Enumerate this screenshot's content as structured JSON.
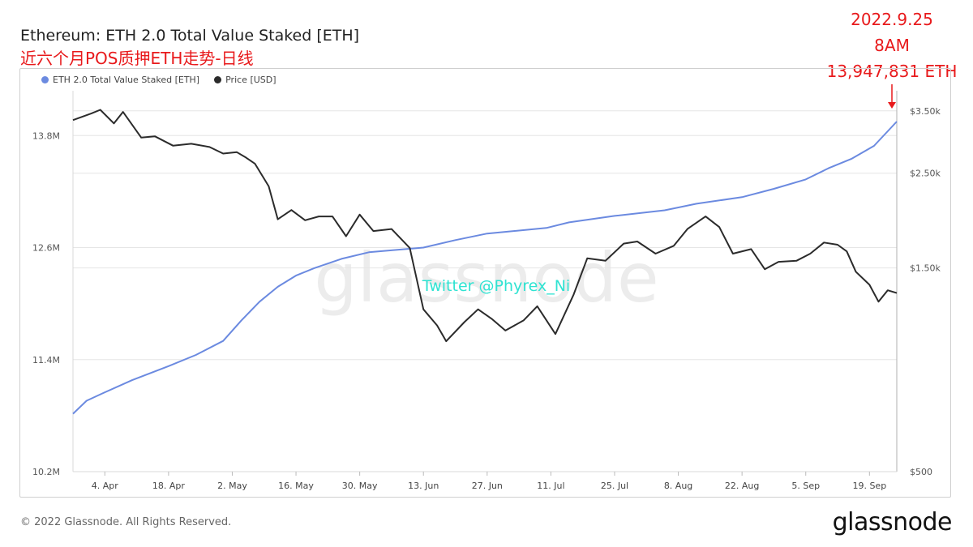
{
  "header": {
    "title": "Ethereum: ETH 2.0 Total Value Staked [ETH]",
    "subtitle": "近六个月POS质押ETH走势-日线"
  },
  "annotation": {
    "date": "2022.9.25",
    "time": "8AM",
    "value": "13,947,831 ETH",
    "arrow": "↓"
  },
  "watermark": "Twitter @Phyrex_Ni",
  "footer": {
    "copyright": "© 2022 Glassnode. All Rights Reserved."
  },
  "brand": {
    "logo": "glassnode",
    "watermark_logo": "glassnode"
  },
  "colors": {
    "staked": "#6b8ae0",
    "price": "#2b2b2b",
    "annotation": "#e8191b",
    "watermark_text": "#2fe3d2",
    "grid": "#e6e6e6"
  },
  "chart_data": {
    "type": "line",
    "x_ticks": [
      "4. Apr",
      "18. Apr",
      "2. May",
      "16. May",
      "30. May",
      "13. Jun",
      "27. Jun",
      "11. Jul",
      "25. Jul",
      "8. Aug",
      "22. Aug",
      "5. Sep",
      "19. Sep"
    ],
    "x_start": "2022-03-28",
    "x_end": "2022-09-25",
    "y_left": {
      "ticks": [
        "10.2M",
        "11.4M",
        "12.6M",
        "13.8M"
      ],
      "tick_values": [
        10.2,
        11.4,
        12.6,
        13.8
      ],
      "range": [
        10.2,
        14.28
      ],
      "unit": "M ETH"
    },
    "y_right": {
      "ticks": [
        "$500",
        "$1.50k",
        "$2.50k",
        "$3.50k"
      ],
      "tick_values": [
        500,
        1500,
        2500,
        3500
      ],
      "range": [
        500,
        3900
      ],
      "scale": "log"
    },
    "legend": [
      {
        "name": "ETH 2.0 Total Value Staked [ETH]",
        "color": "#6b8ae0"
      },
      {
        "name": "Price [USD]",
        "color": "#2b2b2b"
      }
    ],
    "series": [
      {
        "name": "ETH 2.0 Total Value Staked [ETH]",
        "axis": "left",
        "points": [
          [
            "2022-03-28",
            10.82
          ],
          [
            "2022-03-31",
            10.96
          ],
          [
            "2022-04-04",
            11.05
          ],
          [
            "2022-04-10",
            11.18
          ],
          [
            "2022-04-18",
            11.33
          ],
          [
            "2022-04-24",
            11.45
          ],
          [
            "2022-04-30",
            11.6
          ],
          [
            "2022-05-04",
            11.82
          ],
          [
            "2022-05-08",
            12.02
          ],
          [
            "2022-05-12",
            12.18
          ],
          [
            "2022-05-16",
            12.3
          ],
          [
            "2022-05-20",
            12.38
          ],
          [
            "2022-05-26",
            12.48
          ],
          [
            "2022-06-01",
            12.55
          ],
          [
            "2022-06-13",
            12.6
          ],
          [
            "2022-06-20",
            12.68
          ],
          [
            "2022-06-27",
            12.75
          ],
          [
            "2022-07-10",
            12.81
          ],
          [
            "2022-07-15",
            12.87
          ],
          [
            "2022-07-25",
            12.94
          ],
          [
            "2022-08-05",
            13.0
          ],
          [
            "2022-08-12",
            13.07
          ],
          [
            "2022-08-22",
            13.14
          ],
          [
            "2022-08-29",
            13.23
          ],
          [
            "2022-09-05",
            13.33
          ],
          [
            "2022-09-10",
            13.45
          ],
          [
            "2022-09-15",
            13.55
          ],
          [
            "2022-09-20",
            13.69
          ],
          [
            "2022-09-25",
            13.95
          ]
        ]
      },
      {
        "name": "Price [USD]",
        "axis": "right",
        "points": [
          [
            "2022-03-28",
            3330
          ],
          [
            "2022-04-01",
            3450
          ],
          [
            "2022-04-03",
            3520
          ],
          [
            "2022-04-06",
            3270
          ],
          [
            "2022-04-08",
            3480
          ],
          [
            "2022-04-12",
            3030
          ],
          [
            "2022-04-15",
            3050
          ],
          [
            "2022-04-19",
            2900
          ],
          [
            "2022-04-23",
            2930
          ],
          [
            "2022-04-27",
            2880
          ],
          [
            "2022-04-30",
            2780
          ],
          [
            "2022-05-03",
            2800
          ],
          [
            "2022-05-05",
            2720
          ],
          [
            "2022-05-07",
            2630
          ],
          [
            "2022-05-10",
            2330
          ],
          [
            "2022-05-12",
            1950
          ],
          [
            "2022-05-15",
            2050
          ],
          [
            "2022-05-18",
            1940
          ],
          [
            "2022-05-21",
            1980
          ],
          [
            "2022-05-24",
            1980
          ],
          [
            "2022-05-27",
            1780
          ],
          [
            "2022-05-30",
            2000
          ],
          [
            "2022-06-02",
            1830
          ],
          [
            "2022-06-06",
            1850
          ],
          [
            "2022-06-10",
            1670
          ],
          [
            "2022-06-13",
            1200
          ],
          [
            "2022-06-16",
            1100
          ],
          [
            "2022-06-18",
            1010
          ],
          [
            "2022-06-22",
            1120
          ],
          [
            "2022-06-25",
            1200
          ],
          [
            "2022-06-28",
            1140
          ],
          [
            "2022-07-01",
            1070
          ],
          [
            "2022-07-05",
            1130
          ],
          [
            "2022-07-08",
            1220
          ],
          [
            "2022-07-12",
            1050
          ],
          [
            "2022-07-16",
            1300
          ],
          [
            "2022-07-19",
            1580
          ],
          [
            "2022-07-23",
            1560
          ],
          [
            "2022-07-27",
            1710
          ],
          [
            "2022-07-30",
            1730
          ],
          [
            "2022-08-03",
            1620
          ],
          [
            "2022-08-07",
            1690
          ],
          [
            "2022-08-10",
            1850
          ],
          [
            "2022-08-14",
            1980
          ],
          [
            "2022-08-17",
            1870
          ],
          [
            "2022-08-20",
            1620
          ],
          [
            "2022-08-24",
            1660
          ],
          [
            "2022-08-27",
            1490
          ],
          [
            "2022-08-30",
            1550
          ],
          [
            "2022-09-03",
            1560
          ],
          [
            "2022-09-06",
            1620
          ],
          [
            "2022-09-09",
            1720
          ],
          [
            "2022-09-12",
            1700
          ],
          [
            "2022-09-14",
            1640
          ],
          [
            "2022-09-16",
            1470
          ],
          [
            "2022-09-19",
            1370
          ],
          [
            "2022-09-21",
            1250
          ],
          [
            "2022-09-23",
            1330
          ],
          [
            "2022-09-25",
            1310
          ]
        ]
      }
    ]
  }
}
